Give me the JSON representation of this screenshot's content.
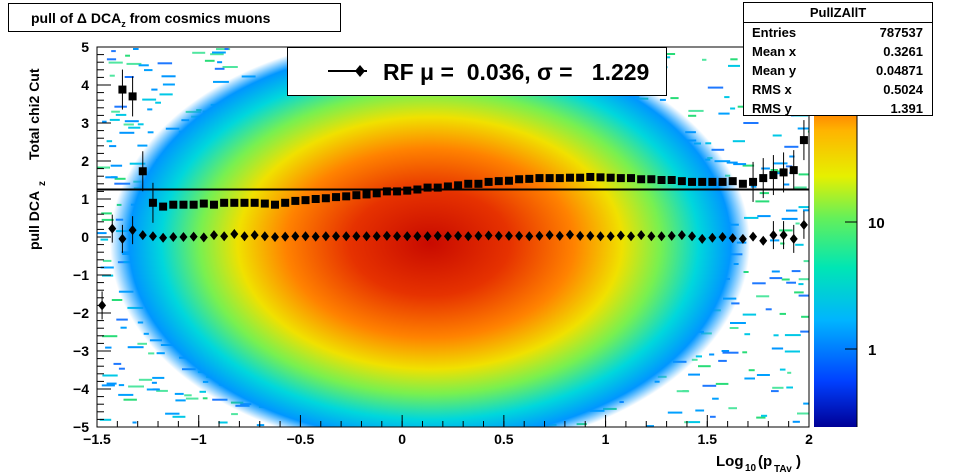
{
  "title": {
    "prefix": "pull of ",
    "delta": "Δ",
    "main": " DCA",
    "sub": "z",
    "suffix": " from cosmics muons"
  },
  "legend": {
    "text": "RF μ =  0.036, σ =   1.229"
  },
  "stats": {
    "name": "PullZAllT",
    "rows": [
      {
        "key": "Entries",
        "value": "787537"
      },
      {
        "key": "Mean x",
        "value": "0.3261"
      },
      {
        "key": "Mean y",
        "value": "0.04871"
      },
      {
        "key": "RMS x",
        "value": "0.5024"
      },
      {
        "key": "RMS y",
        "value": "1.391"
      }
    ]
  },
  "colors": {
    "fit_line": "#000000",
    "markers": "#000000"
  },
  "chart_data": {
    "type": "heatmap",
    "title": "pull of Δ DCA_z from cosmics muons",
    "xlabel": "Log10(pTAv)",
    "ylabel": "pull DCA_z   Total chi2 Cut",
    "xlim": [
      -1.5,
      2
    ],
    "ylim": [
      -5,
      5
    ],
    "x_ticks": [
      "−1.5",
      "−1",
      "−0.5",
      "0",
      "0.5",
      "1",
      "1.5",
      "2"
    ],
    "y_ticks": [
      "−5",
      "−4",
      "−3",
      "−2",
      "−1",
      "0",
      "1",
      "2",
      "3",
      "4",
      "5"
    ],
    "z_ticks": [
      "1",
      "10"
    ],
    "z_scale": "log",
    "fit_line_y": 1.25,
    "series": [
      {
        "marker": "diamond",
        "x": [
          -1.475,
          -1.425,
          -1.375,
          -1.325,
          -1.275,
          -1.225,
          -1.175,
          -1.125,
          -1.075,
          -1.025,
          -0.975,
          -0.925,
          -0.875,
          -0.825,
          -0.775,
          -0.725,
          -0.675,
          -0.625,
          -0.575,
          -0.525,
          -0.475,
          -0.425,
          -0.375,
          -0.325,
          -0.275,
          -0.225,
          -0.175,
          -0.125,
          -0.075,
          -0.025,
          0.025,
          0.075,
          0.125,
          0.175,
          0.225,
          0.275,
          0.325,
          0.375,
          0.425,
          0.475,
          0.525,
          0.575,
          0.625,
          0.675,
          0.725,
          0.775,
          0.825,
          0.875,
          0.925,
          0.975,
          1.025,
          1.075,
          1.125,
          1.175,
          1.225,
          1.275,
          1.325,
          1.375,
          1.425,
          1.475,
          1.525,
          1.575,
          1.625,
          1.675,
          1.725,
          1.775,
          1.825,
          1.875,
          1.925,
          1.975
        ],
        "y": [
          -1.8,
          0.22,
          -0.05,
          0.18,
          0.05,
          0.02,
          -0.02,
          0.0,
          0.0,
          0.01,
          -0.01,
          0.05,
          0.02,
          0.08,
          0.02,
          0.05,
          0.02,
          0.0,
          0.01,
          0.02,
          0.02,
          0.01,
          0.02,
          0.02,
          0.02,
          0.02,
          0.02,
          0.02,
          0.03,
          0.02,
          0.02,
          0.02,
          0.02,
          0.03,
          0.02,
          0.03,
          0.02,
          0.03,
          0.04,
          0.03,
          0.03,
          0.03,
          0.02,
          0.03,
          0.05,
          0.03,
          0.06,
          0.03,
          0.03,
          0.02,
          0.02,
          0.04,
          0.02,
          0.05,
          0.02,
          0.02,
          0.03,
          0.05,
          0.02,
          -0.05,
          -0.02,
          0.0,
          -0.03,
          -0.05,
          0.01,
          -0.1,
          0.05,
          0.05,
          -0.05,
          0.32
        ]
      },
      {
        "marker": "square",
        "x": [
          -1.475,
          -1.425,
          -1.375,
          -1.325,
          -1.275,
          -1.225,
          -1.175,
          -1.125,
          -1.075,
          -1.025,
          -0.975,
          -0.925,
          -0.875,
          -0.825,
          -0.775,
          -0.725,
          -0.675,
          -0.625,
          -0.575,
          -0.525,
          -0.475,
          -0.425,
          -0.375,
          -0.325,
          -0.275,
          -0.225,
          -0.175,
          -0.125,
          -0.075,
          -0.025,
          0.025,
          0.075,
          0.125,
          0.175,
          0.225,
          0.275,
          0.325,
          0.375,
          0.425,
          0.475,
          0.525,
          0.575,
          0.625,
          0.675,
          0.725,
          0.775,
          0.825,
          0.875,
          0.925,
          0.975,
          1.025,
          1.075,
          1.125,
          1.175,
          1.225,
          1.275,
          1.325,
          1.375,
          1.425,
          1.475,
          1.525,
          1.575,
          1.625,
          1.675,
          1.725,
          1.775,
          1.825,
          1.875,
          1.925,
          1.975
        ],
        "y": [
          null,
          null,
          3.88,
          3.7,
          1.73,
          0.9,
          0.8,
          0.85,
          0.85,
          0.85,
          0.88,
          0.85,
          0.9,
          0.9,
          0.9,
          0.9,
          0.88,
          0.85,
          0.9,
          0.95,
          0.97,
          1.0,
          1.02,
          1.05,
          1.07,
          1.1,
          1.12,
          1.15,
          1.2,
          1.2,
          1.22,
          1.25,
          1.3,
          1.3,
          1.33,
          1.36,
          1.4,
          1.4,
          1.45,
          1.47,
          1.48,
          1.52,
          1.53,
          1.55,
          1.55,
          1.55,
          1.56,
          1.56,
          1.58,
          1.57,
          1.56,
          1.55,
          1.55,
          1.52,
          1.52,
          1.5,
          1.5,
          1.47,
          1.45,
          1.45,
          1.45,
          1.45,
          1.47,
          1.4,
          1.45,
          1.55,
          1.63,
          1.7,
          1.76,
          2.55
        ]
      }
    ]
  }
}
